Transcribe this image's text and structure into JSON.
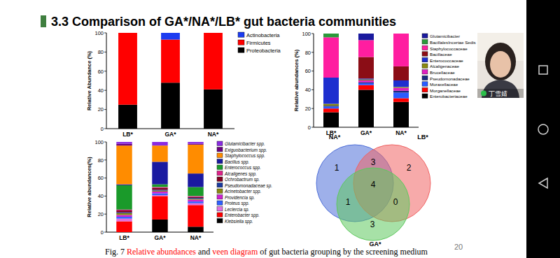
{
  "slide": {
    "title": "3.3 Comparison of GA*/NA*/LB* gut bacteria communities",
    "caption": [
      {
        "text": "Fig. 7 ",
        "color": "#000000"
      },
      {
        "text": "Relative abundances",
        "color": "#ff0000"
      },
      {
        "text": " and ",
        "color": "#000000"
      },
      {
        "text": "veen diagram",
        "color": "#ff0000"
      },
      {
        "text": " of gut bacteria grouping by the screening medium",
        "color": "#000000"
      }
    ],
    "page_number": 20,
    "presenter": "丁雪婧"
  },
  "chart_data": [
    {
      "type": "bar",
      "stacked": true,
      "legend": "right",
      "y_label": "Relative Abundance (%)",
      "categories": [
        "LB*",
        "GA*",
        "NA*"
      ],
      "ylim": [
        0,
        100
      ],
      "yticks": [
        0,
        20,
        40,
        60,
        80,
        100
      ],
      "series": [
        {
          "name": "Actinobacteria",
          "color": "#1c3cf0",
          "values": [
            0,
            7,
            0
          ]
        },
        {
          "name": "Firmicutes",
          "color": "#ff0000",
          "values": [
            75,
            45,
            59
          ]
        },
        {
          "name": "Proteobacteria",
          "color": "#000000",
          "values": [
            25,
            48,
            41
          ]
        }
      ]
    },
    {
      "type": "bar",
      "stacked": true,
      "legend": "right",
      "y_label": "Relative abundances (%)",
      "categories": [
        "LB*",
        "GA*",
        "NA*"
      ],
      "ylim": [
        0,
        100
      ],
      "yticks": [
        0,
        20,
        40,
        60,
        80,
        100
      ],
      "series": [
        {
          "name": "Glutamicibacter",
          "color": "#1a1a9e",
          "values": [
            0,
            7,
            0
          ]
        },
        {
          "name": "BacillalesIncertae Sedis",
          "color": "#2a9a3a",
          "values": [
            4,
            0,
            0
          ]
        },
        {
          "name": "Staphylococcaceae",
          "color": "#ff1ea0",
          "values": [
            43,
            18,
            35
          ]
        },
        {
          "name": "Bacillaceae",
          "color": "#8b0d16",
          "values": [
            0,
            23,
            15
          ]
        },
        {
          "name": "Enterococcaceae",
          "color": "#1e2fcf",
          "values": [
            28,
            1,
            7
          ]
        },
        {
          "name": "Alcaligenaceae",
          "color": "#8a8a10",
          "values": [
            2,
            1,
            1
          ]
        },
        {
          "name": "Brucellaceae",
          "color": "#e020c0",
          "values": [
            0,
            2,
            3
          ]
        },
        {
          "name": "Pseudomonadaceae",
          "color": "#1a2a80",
          "values": [
            1,
            1,
            2
          ]
        },
        {
          "name": "Moraxellaceae",
          "color": "#2a5cff",
          "values": [
            2,
            2,
            6
          ]
        },
        {
          "name": "Morganellaceae",
          "color": "#ff0000",
          "values": [
            4,
            5,
            4
          ]
        },
        {
          "name": "Enterobacteriaceae",
          "color": "#000000",
          "values": [
            16,
            40,
            27
          ]
        }
      ]
    },
    {
      "type": "bar",
      "stacked": true,
      "legend": "right",
      "y_label": "Relative abundances(%)",
      "categories": [
        "LB*",
        "GA*",
        "NA*"
      ],
      "ylim": [
        0,
        100
      ],
      "yticks": [
        0,
        20,
        40,
        60,
        80,
        100
      ],
      "series": [
        {
          "name": "Glutamicibacter spp.",
          "color": "#8a2be2",
          "values": [
            2,
            4,
            2
          ]
        },
        {
          "name": "Exiguobacterium spp.",
          "color": "#6a0080",
          "values": [
            2,
            0,
            1
          ]
        },
        {
          "name": "Staphylococcus spp.",
          "color": "#ff8c00",
          "values": [
            43,
            18,
            32
          ]
        },
        {
          "name": "Bacillus spp.",
          "color": "#1a1aa0",
          "values": [
            1,
            25,
            15
          ]
        },
        {
          "name": "Enterococcus spp.",
          "color": "#1a9a2a",
          "values": [
            27,
            3,
            10
          ]
        },
        {
          "name": "Alcaligenes spp.",
          "color": "#e0208a",
          "values": [
            1,
            1,
            1
          ]
        },
        {
          "name": "Ochrobactrum sp.",
          "color": "#800020",
          "values": [
            2,
            2,
            1
          ]
        },
        {
          "name": "Pseudomonadaceae sp.",
          "color": "#1a3aa0",
          "values": [
            1,
            1,
            1
          ]
        },
        {
          "name": "Acinetobacter spp.",
          "color": "#8a8a10",
          "values": [
            2,
            1,
            1
          ]
        },
        {
          "name": "Providencia sp.",
          "color": "#d020d0",
          "values": [
            2,
            2,
            2
          ]
        },
        {
          "name": "Proteus spp.",
          "color": "#3060ff",
          "values": [
            2,
            2,
            2
          ]
        },
        {
          "name": "Leclercia sp.",
          "color": "#e070e0",
          "values": [
            3,
            1,
            2
          ]
        },
        {
          "name": "Enterobacter spp.",
          "color": "#ff0000",
          "values": [
            12,
            26,
            24
          ]
        },
        {
          "name": "Klebsiella spp.",
          "color": "#000000",
          "values": [
            0,
            14,
            6
          ]
        }
      ]
    },
    {
      "type": "venn",
      "sets": [
        {
          "name": "NA*",
          "color": "#4f6fd8"
        },
        {
          "name": "LB*",
          "color": "#f06464"
        },
        {
          "name": "GA*",
          "color": "#5fc85f"
        }
      ],
      "regions": [
        {
          "sets": [
            "NA*"
          ],
          "value": 1
        },
        {
          "sets": [
            "LB*"
          ],
          "value": 2
        },
        {
          "sets": [
            "GA*"
          ],
          "value": 3
        },
        {
          "sets": [
            "NA*",
            "LB*"
          ],
          "value": 3
        },
        {
          "sets": [
            "NA*",
            "GA*"
          ],
          "value": 1
        },
        {
          "sets": [
            "LB*",
            "GA*"
          ],
          "value": 0
        },
        {
          "sets": [
            "NA*",
            "LB*",
            "GA*"
          ],
          "value": 4
        }
      ]
    }
  ]
}
